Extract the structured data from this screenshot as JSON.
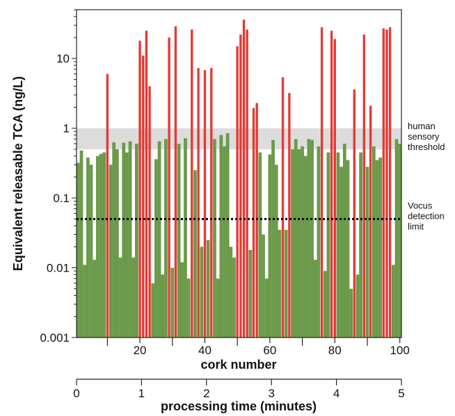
{
  "chart_data": {
    "type": "bar",
    "yscale": "log",
    "ylim": [
      0.001,
      50
    ],
    "xlim": [
      0.5,
      100.5
    ],
    "ylabel": "Equivalent  releasable  TCA (ng/L)",
    "xlabel": "cork number",
    "x2label": "processing time (minutes)",
    "y_ticks": [
      {
        "value": 0.001,
        "label": "0.001"
      },
      {
        "value": 0.01,
        "label": "0.01"
      },
      {
        "value": 0.1,
        "label": "0.1"
      },
      {
        "value": 1,
        "label": "1"
      },
      {
        "value": 10,
        "label": "10"
      }
    ],
    "x_ticks": [
      {
        "value": 20,
        "label": "20"
      },
      {
        "value": 40,
        "label": "40"
      },
      {
        "value": 60,
        "label": "60"
      },
      {
        "value": 80,
        "label": "80"
      },
      {
        "value": 100,
        "label": "100"
      }
    ],
    "x2_range": [
      0,
      5
    ],
    "x2_ticks": [
      {
        "value": 0,
        "label": "0"
      },
      {
        "value": 1,
        "label": "1"
      },
      {
        "value": 2,
        "label": "2"
      },
      {
        "value": 3,
        "label": "3"
      },
      {
        "value": 4,
        "label": "4"
      },
      {
        "value": 5,
        "label": "5"
      }
    ],
    "threshold_band": {
      "low": 0.5,
      "high": 1.0,
      "label_lines": [
        "human",
        "sensory",
        "threshold"
      ]
    },
    "detection_limit": {
      "value": 0.05,
      "label_lines": [
        "Vocus",
        "detection",
        "limit"
      ]
    },
    "colors": {
      "pass": "#6b9a4a",
      "fail": "#e53935",
      "band": "#dcdcdc",
      "line": "#000000"
    },
    "series": [
      {
        "x": [
          1,
          2,
          3,
          4,
          5,
          6,
          7,
          8,
          9,
          10,
          11,
          12,
          13,
          14,
          15,
          16,
          17,
          18,
          19,
          20,
          21,
          22,
          23,
          24,
          25,
          26,
          27,
          28,
          29,
          30,
          31,
          32,
          33,
          34,
          35,
          36,
          37,
          38,
          39,
          40,
          41,
          42,
          43,
          44,
          45,
          46,
          47,
          48,
          49,
          50,
          51,
          52,
          53,
          54,
          55,
          56,
          57,
          58,
          59,
          60,
          61,
          62,
          63,
          64,
          65,
          66,
          67,
          68,
          69,
          70,
          71,
          72,
          73,
          74,
          75,
          76,
          77,
          78,
          79,
          80,
          81,
          82,
          83,
          84,
          85,
          86,
          87,
          88,
          89,
          90,
          91,
          92,
          93,
          94,
          95,
          96,
          97,
          98,
          99,
          100
        ],
        "values": [
          0.32,
          0.48,
          0.011,
          0.38,
          0.3,
          0.013,
          0.4,
          0.43,
          0.45,
          6.0,
          0.3,
          0.63,
          0.5,
          0.014,
          0.62,
          0.45,
          0.65,
          0.014,
          0.6,
          18,
          11,
          25,
          4.0,
          0.006,
          0.36,
          0.65,
          0.008,
          0.7,
          20,
          0.01,
          29,
          0.6,
          0.012,
          0.72,
          0.007,
          26,
          0.25,
          7.3,
          0.02,
          6.8,
          0.025,
          7.3,
          0.7,
          0.007,
          0.8,
          0.55,
          0.85,
          0.02,
          0.014,
          15,
          22,
          36,
          26,
          0.018,
          1.95,
          2.3,
          0.45,
          0.03,
          0.007,
          0.42,
          0.68,
          0.3,
          0.035,
          5.4,
          0.035,
          3.2,
          0.5,
          0.7,
          0.5,
          0.55,
          0.4,
          0.7,
          0.68,
          0.013,
          0.55,
          28,
          0.009,
          0.45,
          25,
          19,
          0.45,
          0.28,
          0.6,
          0.35,
          0.005,
          3.6,
          0.008,
          0.45,
          22,
          0.28,
          2.1,
          0.55,
          0.35,
          0.38,
          27,
          26,
          28,
          0.011,
          0.7,
          0.6
        ],
        "flags": [
          0,
          0,
          0,
          0,
          0,
          0,
          0,
          0,
          0,
          1,
          0,
          0,
          0,
          0,
          0,
          0,
          0,
          0,
          0,
          1,
          1,
          1,
          1,
          0,
          0,
          0,
          0,
          0,
          1,
          0,
          1,
          0,
          0,
          0,
          0,
          1,
          0,
          1,
          0,
          1,
          0,
          1,
          0,
          0,
          0,
          0,
          0,
          0,
          0,
          1,
          1,
          1,
          1,
          0,
          1,
          1,
          0,
          0,
          0,
          0,
          0,
          0,
          0,
          1,
          0,
          1,
          0,
          0,
          0,
          0,
          0,
          0,
          0,
          0,
          0,
          1,
          0,
          0,
          1,
          1,
          0,
          0,
          0,
          0,
          0,
          1,
          0,
          0,
          1,
          0,
          1,
          0,
          0,
          0,
          1,
          1,
          1,
          0,
          0,
          0
        ]
      }
    ]
  }
}
